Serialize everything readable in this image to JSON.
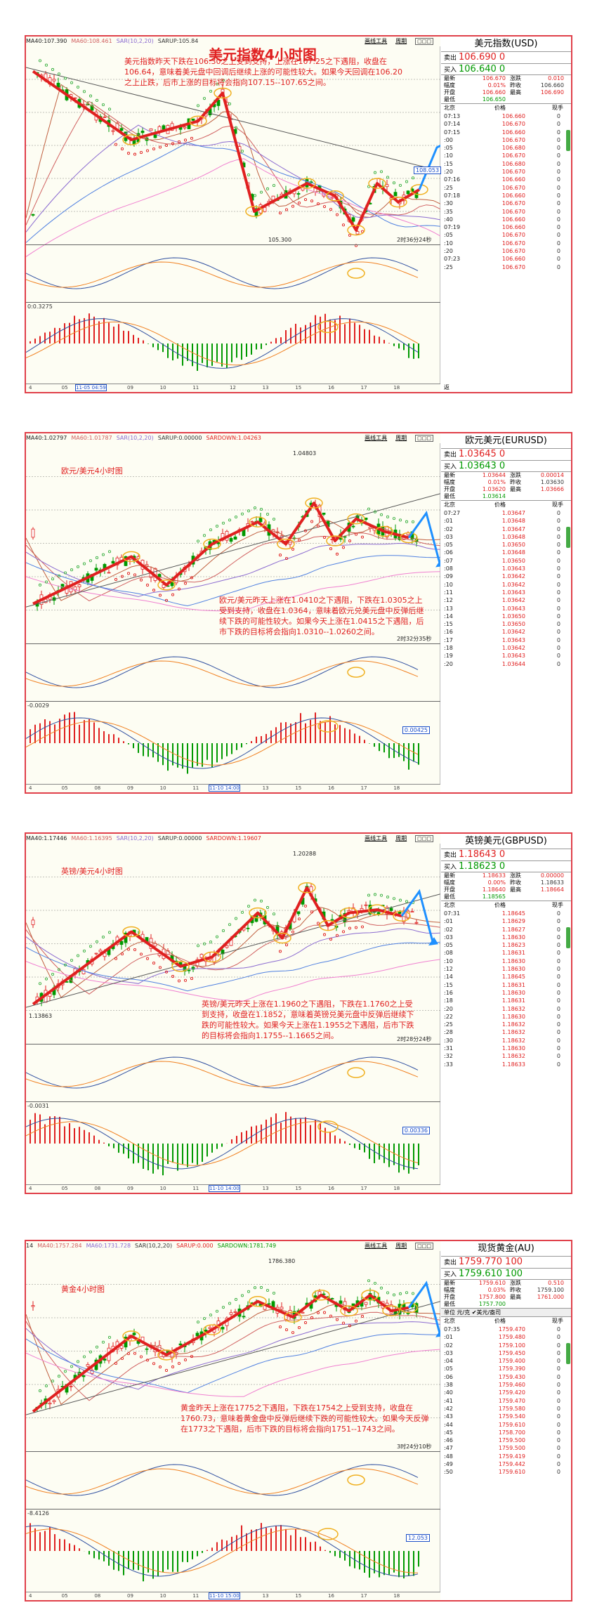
{
  "panels": [
    {
      "id": "usd",
      "indicators": [
        "MA40:107.390",
        "MA60:108.461",
        "SAR(10,2,20)",
        "SARUP:105.84"
      ],
      "top_links": [
        "画线工具",
        "周期"
      ],
      "big_title": "美元指数4小时图",
      "chart_title": "",
      "note": "美元指数昨天下跌在106.30之上受到支持，上涨在107.25之下遇阻，收盘在106.64，意味着美元盘中回调后继续上涨的可能性较大。如果今天回调在106.20之上止跌，后市上涨的目标将会指向107.15--107.65之间。",
      "price_labels": [
        "105.300"
      ],
      "flag": "108.053",
      "countdown": "2时36分24秒",
      "sub1_value": "",
      "sub2_value": "0:0.3275",
      "sub2_box": "",
      "x_labels": [
        "4",
        "05",
        "08",
        "09",
        "10",
        "11",
        "12",
        "13",
        "15",
        "16",
        "17",
        "18"
      ],
      "x_highlight": "11-05 04:59",
      "quote": {
        "name": "美元指数(USD)",
        "sell_label": "卖出",
        "sell": "106.690 0",
        "buy_label": "买入",
        "buy": "106.640 0",
        "stats": [
          [
            "最新",
            "106.670",
            "涨跌",
            "0.010"
          ],
          [
            "幅度",
            "0.01%",
            "昨收",
            "106.660"
          ],
          [
            "开盘",
            "106.660",
            "最高",
            "106.690"
          ],
          [
            "最低",
            "106.650",
            "",
            ""
          ]
        ],
        "unit": "",
        "col_headers": [
          "北京",
          "价格",
          "现手"
        ],
        "ticks": [
          [
            "07:13",
            "106.660",
            "0"
          ],
          [
            "07:14",
            "106.670",
            "0"
          ],
          [
            "07:15",
            "106.660",
            "0"
          ],
          [
            ":00",
            "106.670",
            "0"
          ],
          [
            ":05",
            "106.680",
            "0"
          ],
          [
            ":10",
            "106.670",
            "0"
          ],
          [
            ":15",
            "106.680",
            "0"
          ],
          [
            ":20",
            "106.670",
            "0"
          ],
          [
            "07:16",
            "106.660",
            "0"
          ],
          [
            ":25",
            "106.670",
            "0"
          ],
          [
            "07:18",
            "106.660",
            "0"
          ],
          [
            ":30",
            "106.670",
            "0"
          ],
          [
            ":35",
            "106.670",
            "0"
          ],
          [
            ":40",
            "106.660",
            "0"
          ],
          [
            "07:19",
            "106.660",
            "0"
          ],
          [
            ":05",
            "106.670",
            "0"
          ],
          [
            ":10",
            "106.670",
            "0"
          ],
          [
            ":20",
            "106.670",
            "0"
          ],
          [
            "07:23",
            "106.660",
            "0"
          ],
          [
            ":25",
            "106.670",
            "0"
          ]
        ],
        "bottom": "返"
      }
    },
    {
      "id": "eur",
      "indicators": [
        "MA40:1.02797",
        "MA60:1.01787",
        "SAR(10,2,20)",
        "SARUP:0.00000",
        "SARDOWN:1.04263"
      ],
      "top_links": [
        "画线工具",
        "周期"
      ],
      "big_title": "",
      "chart_title": "欧元/美元4小时图",
      "note": "欧元/美元昨天上涨在1.0410之下遇阻，下跌在1.0305之上受到支持，收盘在1.0364，意味着欧元兑美元盘中反弹后继续下跌的可能性较大。如果今天上涨在1.0415之下遇阻，后市下跌的目标将会指向1.0310--1.0260之间。",
      "price_labels": [
        "1.04803"
      ],
      "flag": "",
      "countdown": "2时32分35秒",
      "sub1_value": "",
      "sub2_value": "-0.0029",
      "sub2_box": "0.00425",
      "x_labels": [
        "4",
        "05",
        "08",
        "09",
        "10",
        "11",
        "12",
        "13",
        "15",
        "16",
        "17",
        "18"
      ],
      "x_highlight": "11-10 14:00",
      "quote": {
        "name": "欧元美元(EURUSD)",
        "sell_label": "卖出",
        "sell": "1.03645 0",
        "buy_label": "买入",
        "buy": "1.03643 0",
        "stats": [
          [
            "最新",
            "1.03644",
            "涨跌",
            "0.00014"
          ],
          [
            "幅度",
            "0.01%",
            "昨收",
            "1.03630"
          ],
          [
            "开盘",
            "1.03620",
            "最高",
            "1.03666"
          ],
          [
            "最低",
            "1.03614",
            "",
            ""
          ]
        ],
        "unit": "",
        "col_headers": [
          "北京",
          "价格",
          "现手"
        ],
        "ticks": [
          [
            "07:27",
            "1.03647",
            "0"
          ],
          [
            ":01",
            "1.03648",
            "0"
          ],
          [
            ":02",
            "1.03647",
            "0"
          ],
          [
            ":03",
            "1.03648",
            "0"
          ],
          [
            ":05",
            "1.03650",
            "0"
          ],
          [
            ":06",
            "1.03648",
            "0"
          ],
          [
            ":07",
            "1.03650",
            "0"
          ],
          [
            ":08",
            "1.03643",
            "0"
          ],
          [
            ":09",
            "1.03642",
            "0"
          ],
          [
            ":10",
            "1.03642",
            "0"
          ],
          [
            ":11",
            "1.03643",
            "0"
          ],
          [
            ":12",
            "1.03642",
            "0"
          ],
          [
            ":13",
            "1.03643",
            "0"
          ],
          [
            ":14",
            "1.03650",
            "0"
          ],
          [
            ":15",
            "1.03650",
            "0"
          ],
          [
            ":16",
            "1.03642",
            "0"
          ],
          [
            ":17",
            "1.03643",
            "0"
          ],
          [
            ":18",
            "1.03642",
            "0"
          ],
          [
            ":19",
            "1.03643",
            "0"
          ],
          [
            ":20",
            "1.03644",
            "0"
          ]
        ],
        "bottom": ""
      }
    },
    {
      "id": "gbp",
      "indicators": [
        "MA40:1.17446",
        "MA60:1.16395",
        "SAR(10,2,20)",
        "SARUP:0.00000",
        "SARDOWN:1.19607"
      ],
      "top_links": [
        "画线工具",
        "周期"
      ],
      "big_title": "",
      "chart_title": "英镑/美元4小时图",
      "note": "英镑/美元昨天上涨在1.1960之下遇阻，下跌在1.1760之上受到支持，收盘在1.1852，意味着英镑兑美元盘中反弹后继续下跌的可能性较大。如果今天上涨在1.1955之下遇阻，后市下跌的目标将会指向1.1755--1.1665之间。",
      "price_labels": [
        "1.20288",
        "1.13863"
      ],
      "flag": "",
      "countdown": "2时28分24秒",
      "sub1_value": "",
      "sub2_value": "-0.0031",
      "sub2_box": "0.00336",
      "x_labels": [
        "4",
        "05",
        "08",
        "09",
        "10",
        "11",
        "12",
        "13",
        "15",
        "16",
        "17",
        "18"
      ],
      "x_highlight": "11-10 14:00",
      "quote": {
        "name": "英镑美元(GBPUSD)",
        "sell_label": "卖出",
        "sell": "1.18643 0",
        "buy_label": "买入",
        "buy": "1.18623 0",
        "stats": [
          [
            "最新",
            "1.18633",
            "涨跌",
            "0.00000"
          ],
          [
            "幅度",
            "0.00%",
            "昨收",
            "1.18633"
          ],
          [
            "开盘",
            "1.18640",
            "最高",
            "1.18664"
          ],
          [
            "最低",
            "1.18565",
            "",
            ""
          ]
        ],
        "unit": "",
        "col_headers": [
          "北京",
          "价格",
          "现手"
        ],
        "ticks": [
          [
            "07:31",
            "1.18645",
            "0"
          ],
          [
            ":01",
            "1.18629",
            "0"
          ],
          [
            ":02",
            "1.18627",
            "0"
          ],
          [
            ":03",
            "1.18630",
            "0"
          ],
          [
            ":05",
            "1.18623",
            "0"
          ],
          [
            ":08",
            "1.18631",
            "0"
          ],
          [
            ":10",
            "1.18630",
            "0"
          ],
          [
            ":12",
            "1.18630",
            "0"
          ],
          [
            ":14",
            "1.18645",
            "0"
          ],
          [
            ":15",
            "1.18631",
            "0"
          ],
          [
            ":16",
            "1.18630",
            "0"
          ],
          [
            ":18",
            "1.18631",
            "0"
          ],
          [
            ":20",
            "1.18632",
            "0"
          ],
          [
            ":22",
            "1.18630",
            "0"
          ],
          [
            ":25",
            "1.18632",
            "0"
          ],
          [
            ":28",
            "1.18632",
            "0"
          ],
          [
            ":30",
            "1.18632",
            "0"
          ],
          [
            ":31",
            "1.18630",
            "0"
          ],
          [
            ":32",
            "1.18632",
            "0"
          ],
          [
            ":33",
            "1.18633",
            "0"
          ]
        ],
        "bottom": ""
      }
    },
    {
      "id": "gold",
      "indicators": [
        "14",
        "MA40:1757.284",
        "MA60:1731.728",
        "SAR(10,2,20)",
        "SARUP:0.000",
        "SARDOWN:1781.749"
      ],
      "top_links": [
        "画线工具",
        "周期"
      ],
      "big_title": "",
      "chart_title": "黄金4小时图",
      "note": "黄金昨天上涨在1775之下遇阻，下跌在1754之上受到支持，收盘在1760.73，意味着黄金盘中反弹后继续下跌的可能性较大。如果今天反弹在1773之下遇阻，后市下跌的目标将会指向1751--1743之间。",
      "price_labels": [
        "1786.380"
      ],
      "flag": "",
      "countdown": "3时24分10秒",
      "sub1_value": "",
      "sub2_value": "-8.4126",
      "sub2_box": "12.053",
      "x_labels": [
        "4",
        "05",
        "08",
        "09",
        "10",
        "11",
        "12",
        "13",
        "15",
        "16",
        "17",
        "18"
      ],
      "x_highlight": "11-10 15:00",
      "quote": {
        "name": "现货黄金(AU)",
        "sell_label": "卖出",
        "sell": "1759.770 100",
        "buy_label": "买入",
        "buy": "1759.610 100",
        "stats": [
          [
            "最新",
            "1759.610",
            "涨跌",
            "0.510"
          ],
          [
            "幅度",
            "0.03%",
            "昨收",
            "1759.100"
          ],
          [
            "开盘",
            "1757.800",
            "最高",
            "1761.000"
          ],
          [
            "最低",
            "1757.700",
            "",
            ""
          ]
        ],
        "unit": "单位 元/克 ✔美元/盎司",
        "col_headers": [
          "北京",
          "价格",
          "现手"
        ],
        "ticks": [
          [
            "07:35",
            "1759.470",
            "0"
          ],
          [
            ":01",
            "1759.480",
            "0"
          ],
          [
            ":02",
            "1759.100",
            "0"
          ],
          [
            ":03",
            "1759.450",
            "0"
          ],
          [
            ":04",
            "1759.400",
            "0"
          ],
          [
            ":05",
            "1759.390",
            "0"
          ],
          [
            ":06",
            "1759.430",
            "0"
          ],
          [
            ":38",
            "1759.460",
            "0"
          ],
          [
            ":40",
            "1759.420",
            "0"
          ],
          [
            ":41",
            "1759.470",
            "0"
          ],
          [
            ":42",
            "1759.580",
            "0"
          ],
          [
            ":43",
            "1759.540",
            "0"
          ],
          [
            ":44",
            "1759.610",
            "0"
          ],
          [
            ":45",
            "1758.700",
            "0"
          ],
          [
            ":46",
            "1759.500",
            "0"
          ],
          [
            ":47",
            "1759.500",
            "0"
          ],
          [
            ":48",
            "1759.419",
            "0"
          ],
          [
            ":49",
            "1759.442",
            "0"
          ],
          [
            ":50",
            "1759.610",
            "0"
          ]
        ],
        "bottom": ""
      }
    }
  ],
  "colors": {
    "border": "#e0404a",
    "bull": "#e02020",
    "bear": "#009900",
    "ma40": "#d06060",
    "ma60": "#8b6bd0",
    "trend_arrow": "#1e90ff",
    "circle": "#f0b020",
    "sar_dot": "#e02020",
    "bg": "#fdfdf3"
  }
}
